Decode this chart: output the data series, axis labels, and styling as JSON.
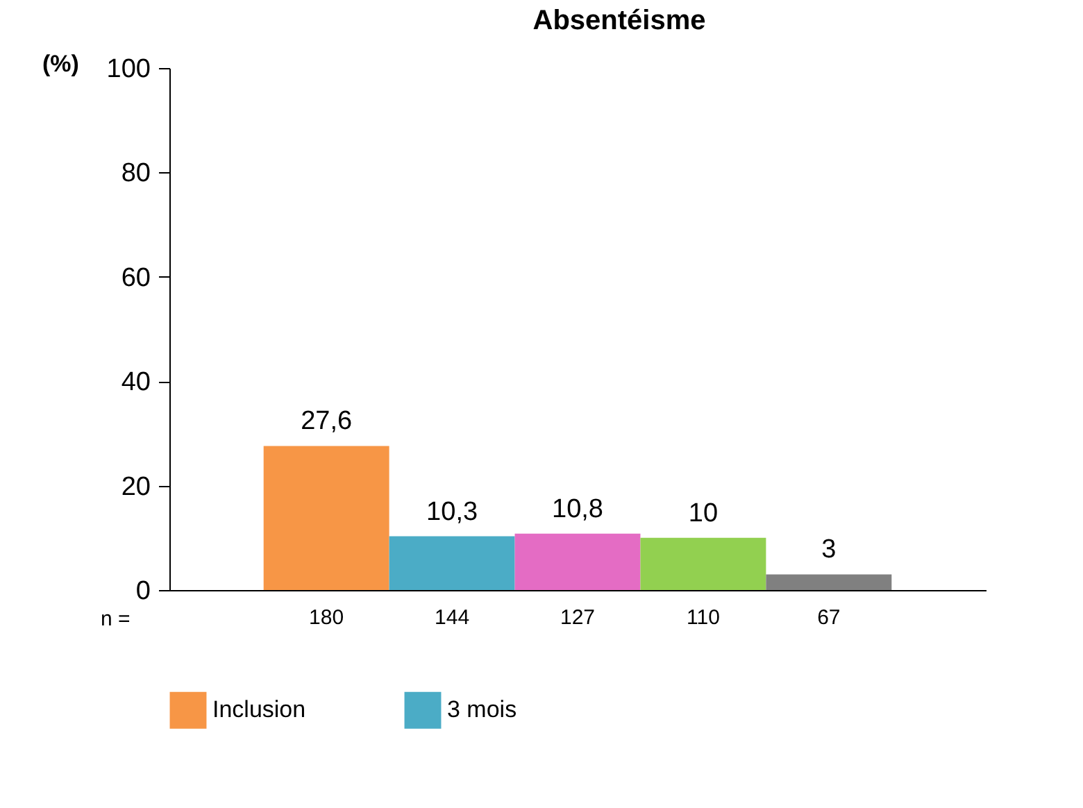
{
  "chart_data": {
    "type": "bar",
    "title": "Absentéisme",
    "xlabel": "n =",
    "ylabel": "(%)",
    "categories": [
      "180",
      "144",
      "127",
      "110",
      "67"
    ],
    "series": [
      {
        "name": "Inclusion",
        "color": "#f79646",
        "values": [
          27.6,
          null,
          null,
          null,
          null
        ],
        "value_labels": [
          "27,6",
          null,
          null,
          null,
          null
        ]
      },
      {
        "name": "3 mois",
        "color": "#4bacc6",
        "values": [
          null,
          10.3,
          null,
          null,
          null
        ],
        "value_labels": [
          null,
          "10,3",
          null,
          null,
          null
        ]
      },
      {
        "color": "#e46cc4",
        "values": [
          null,
          null,
          10.8,
          null,
          null
        ],
        "value_labels": [
          null,
          null,
          "10,8",
          null,
          null
        ]
      },
      {
        "color": "#92d050",
        "values": [
          null,
          null,
          null,
          10,
          null
        ],
        "value_labels": [
          null,
          null,
          null,
          "10",
          null
        ]
      },
      {
        "color": "#808080",
        "values": [
          null,
          null,
          null,
          null,
          3
        ],
        "value_labels": [
          null,
          null,
          null,
          null,
          "3"
        ]
      }
    ],
    "ylim": [
      0,
      100
    ],
    "yticks": [
      0,
      20,
      40,
      60,
      80,
      100
    ],
    "legend": "bottom"
  }
}
